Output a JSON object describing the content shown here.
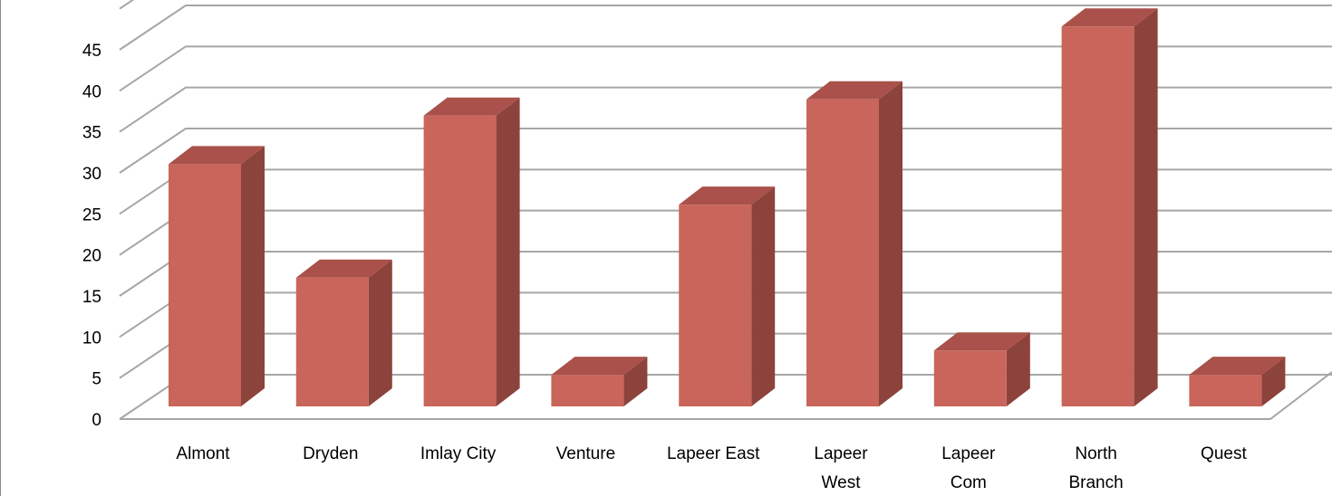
{
  "chart_data": {
    "type": "bar",
    "style": "3d-column",
    "categories": [
      [
        "Almont"
      ],
      [
        "Dryden"
      ],
      [
        "Imlay City"
      ],
      [
        "Venture"
      ],
      [
        "Lapeer East"
      ],
      [
        "Lapeer",
        "West"
      ],
      [
        "Lapeer",
        "Com"
      ],
      [
        "North",
        "Branch"
      ],
      [
        "Quest"
      ]
    ],
    "values": [
      28,
      14,
      34,
      2,
      23,
      36,
      5,
      45,
      2
    ],
    "yticks": [
      "0",
      "5",
      "10",
      "15",
      "20",
      "25",
      "30",
      "35",
      "40",
      "45"
    ],
    "ylim": [
      0,
      50
    ],
    "grid": true,
    "legend": "none",
    "colors": {
      "bar_front": "#c9655a",
      "bar_top": "#a9514a",
      "bar_side": "#8c433b",
      "grid": "#a6a6a6",
      "floor": "#a6a6a6"
    }
  }
}
